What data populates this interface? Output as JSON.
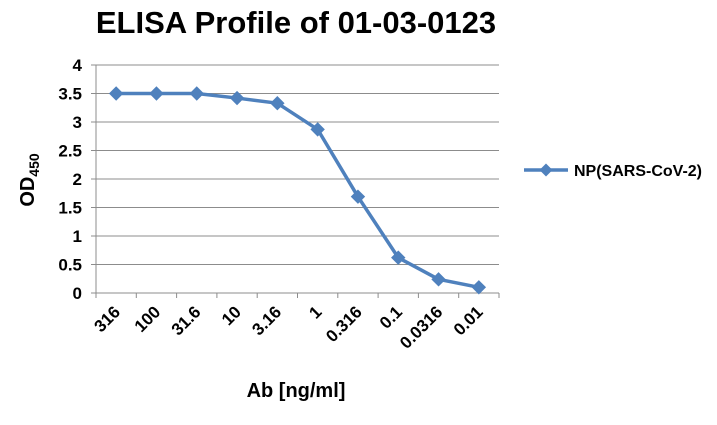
{
  "chart_data": {
    "type": "line",
    "title": "ELISA Profile of 01-03-0123",
    "xlabel": "Ab [ng/ml]",
    "ylabel": "OD",
    "ylabel_sub": "450",
    "categories": [
      "316",
      "100",
      "31.6",
      "10",
      "3.16",
      "1",
      "0.316",
      "0.1",
      "0.0316",
      "0.01"
    ],
    "series": [
      {
        "name": "NP(SARS-CoV-2)",
        "values": [
          3.5,
          3.5,
          3.5,
          3.42,
          3.33,
          2.87,
          1.69,
          0.62,
          0.24,
          0.1
        ],
        "color": "#4F81BD"
      }
    ],
    "ylim": [
      0,
      4
    ],
    "yticks": [
      0,
      0.5,
      1,
      1.5,
      2,
      2.5,
      3,
      3.5,
      4
    ],
    "ytick_labels": [
      "0",
      "0.5",
      "1",
      "1.5",
      "2",
      "2.5",
      "3",
      "3.5",
      "4"
    ],
    "grid": true,
    "legend_position": "right",
    "marker": "diamond"
  }
}
